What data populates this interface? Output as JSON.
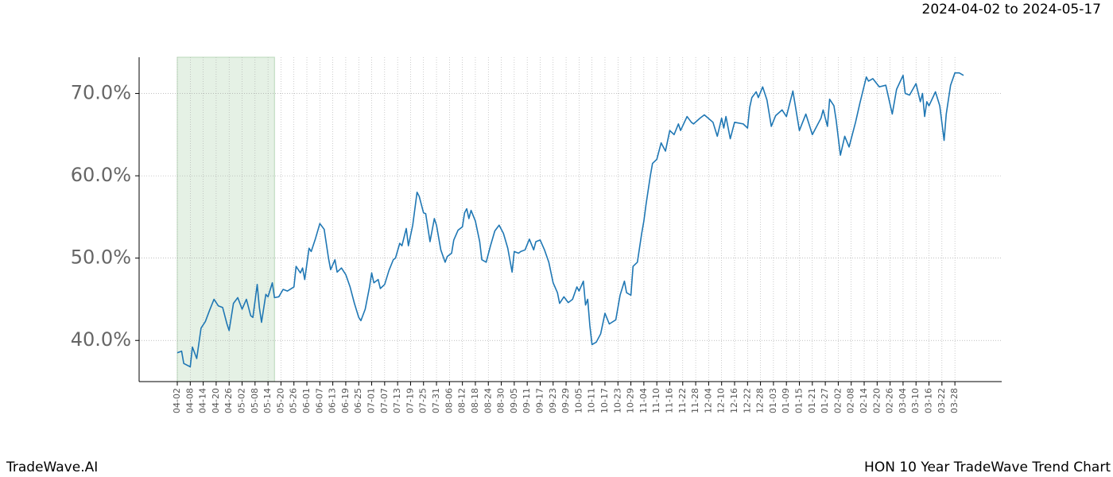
{
  "chart_data": {
    "type": "line",
    "title": "HON 10 Year TradeWave Trend Chart",
    "subtitle": "2024-04-02 to 2024-05-17",
    "brand": "TradeWave.AI",
    "shaded_range": [
      "04-02",
      "05-17"
    ],
    "shade_color": "#e5f1e5",
    "grid": true,
    "ylim": [
      35,
      74.4
    ],
    "yticks": [
      {
        "value": 40,
        "label": "40.0%"
      },
      {
        "value": 50,
        "label": "50.0%"
      },
      {
        "value": 60,
        "label": "60.0%"
      },
      {
        "value": 70,
        "label": "70.0%"
      }
    ],
    "xticks": [
      "04-02",
      "04-08",
      "04-14",
      "04-20",
      "04-26",
      "05-02",
      "05-08",
      "05-14",
      "05-20",
      "05-26",
      "06-01",
      "06-07",
      "06-13",
      "06-19",
      "06-25",
      "07-01",
      "07-07",
      "07-13",
      "07-19",
      "07-25",
      "07-31",
      "08-06",
      "08-12",
      "08-18",
      "08-24",
      "08-30",
      "09-05",
      "09-11",
      "09-17",
      "09-23",
      "09-29",
      "10-05",
      "10-11",
      "10-17",
      "10-23",
      "10-29",
      "11-04",
      "11-10",
      "11-16",
      "11-22",
      "11-28",
      "12-04",
      "12-10",
      "12-16",
      "12-22",
      "12-28",
      "01-03",
      "01-09",
      "01-15",
      "01-21",
      "01-27",
      "02-02",
      "02-08",
      "02-14",
      "02-20",
      "02-26",
      "03-04",
      "03-10",
      "03-16",
      "03-22",
      "03-28"
    ],
    "x": [
      "04-02",
      "04-04",
      "04-05",
      "04-08",
      "04-09",
      "04-11",
      "04-13",
      "04-15",
      "04-17",
      "04-19",
      "04-21",
      "04-23",
      "04-25",
      "04-26",
      "04-28",
      "04-30",
      "05-02",
      "05-04",
      "05-06",
      "05-07",
      "05-09",
      "05-10",
      "05-11",
      "05-13",
      "05-14",
      "05-16",
      "05-17",
      "05-19",
      "05-21",
      "05-23",
      "05-26",
      "05-27",
      "05-29",
      "05-30",
      "05-31",
      "06-02",
      "06-03",
      "06-05",
      "06-07",
      "06-09",
      "06-11",
      "06-12",
      "06-14",
      "06-15",
      "06-17",
      "06-19",
      "06-21",
      "06-23",
      "06-25",
      "06-26",
      "06-28",
      "06-30",
      "07-01",
      "07-02",
      "07-04",
      "07-05",
      "07-07",
      "07-09",
      "07-11",
      "07-12",
      "07-14",
      "07-15",
      "07-17",
      "07-18",
      "07-20",
      "07-22",
      "07-23",
      "07-25",
      "07-26",
      "07-28",
      "07-30",
      "07-31",
      "08-02",
      "08-04",
      "08-05",
      "08-07",
      "08-08",
      "08-10",
      "08-12",
      "08-13",
      "08-14",
      "08-15",
      "08-16",
      "08-18",
      "08-20",
      "08-21",
      "08-23",
      "08-25",
      "08-27",
      "08-29",
      "08-31",
      "09-02",
      "09-04",
      "09-05",
      "09-07",
      "09-08",
      "09-10",
      "09-12",
      "09-14",
      "09-15",
      "09-17",
      "09-19",
      "09-21",
      "09-23",
      "09-25",
      "09-26",
      "09-28",
      "09-30",
      "10-02",
      "10-04",
      "10-05",
      "10-07",
      "10-08",
      "10-09",
      "10-10",
      "10-11",
      "10-13",
      "10-15",
      "10-17",
      "10-19",
      "10-22",
      "10-24",
      "10-26",
      "10-27",
      "10-29",
      "10-30",
      "11-01",
      "11-03",
      "11-04",
      "11-05",
      "11-07",
      "11-08",
      "11-10",
      "11-12",
      "11-14",
      "11-16",
      "11-18",
      "11-20",
      "11-21",
      "11-24",
      "11-26",
      "11-27",
      "11-30",
      "12-02",
      "12-06",
      "12-08",
      "12-10",
      "12-11",
      "12-12",
      "12-14",
      "12-16",
      "12-20",
      "12-22",
      "12-23",
      "12-24",
      "12-26",
      "12-27",
      "12-29",
      "12-31",
      "01-02",
      "01-04",
      "01-07",
      "01-09",
      "01-12",
      "01-15",
      "01-18",
      "01-21",
      "01-25",
      "01-26",
      "01-28",
      "01-29",
      "01-31",
      "02-01",
      "02-03",
      "02-05",
      "02-07",
      "02-10",
      "02-12",
      "02-15",
      "02-16",
      "02-18",
      "02-21",
      "02-24",
      "02-27",
      "03-01",
      "03-04",
      "03-05",
      "03-07",
      "03-10",
      "03-12",
      "03-13",
      "03-14",
      "03-15",
      "03-16",
      "03-19",
      "03-21",
      "03-23",
      "03-24",
      "03-26",
      "03-28",
      "03-30",
      "04-01"
    ],
    "series": [
      {
        "color": "#1f77b4",
        "values": [
          38.5,
          38.7,
          37.2,
          36.8,
          39.2,
          37.8,
          41.5,
          42.3,
          43.7,
          45.0,
          44.2,
          44.0,
          42.0,
          41.2,
          44.5,
          45.2,
          43.8,
          45.0,
          43.0,
          42.8,
          46.8,
          44.0,
          42.2,
          45.6,
          45.3,
          47.0,
          45.2,
          45.3,
          46.2,
          46.0,
          46.5,
          49.0,
          48.2,
          48.8,
          47.4,
          51.2,
          50.8,
          52.4,
          54.2,
          53.5,
          50.0,
          48.6,
          49.8,
          48.3,
          48.8,
          48.0,
          46.5,
          44.5,
          42.8,
          42.4,
          43.8,
          46.5,
          48.2,
          47.0,
          47.4,
          46.3,
          46.8,
          48.5,
          49.8,
          50.0,
          51.8,
          51.5,
          53.6,
          51.5,
          54.0,
          58.0,
          57.5,
          55.5,
          55.4,
          52.0,
          54.8,
          54.0,
          51.0,
          49.5,
          50.2,
          50.6,
          52.2,
          53.4,
          53.8,
          55.5,
          56.0,
          54.8,
          55.8,
          54.5,
          52.0,
          49.8,
          49.5,
          51.5,
          53.3,
          54.0,
          53.0,
          51.2,
          48.3,
          50.8,
          50.6,
          50.8,
          51.0,
          52.3,
          51.0,
          52.0,
          52.2,
          51.0,
          49.5,
          47.0,
          45.8,
          44.5,
          45.3,
          44.6,
          45.0,
          46.5,
          46.0,
          47.2,
          44.3,
          45.0,
          41.8,
          39.5,
          39.8,
          40.8,
          43.3,
          42.0,
          42.5,
          45.5,
          47.2,
          45.8,
          45.5,
          49.0,
          49.5,
          53.0,
          54.5,
          56.5,
          60.0,
          61.5,
          62.0,
          64.0,
          63.0,
          65.5,
          65.0,
          66.3,
          65.5,
          67.2,
          66.5,
          66.3,
          67.0,
          67.4,
          66.5,
          64.8,
          67.0,
          65.8,
          67.2,
          64.5,
          66.5,
          66.3,
          65.8,
          68.3,
          69.5,
          70.2,
          69.5,
          70.8,
          69.2,
          66.0,
          67.3,
          68.0,
          67.2,
          70.3,
          65.5,
          67.5,
          65.0,
          67.0,
          68.0,
          66.0,
          69.3,
          68.5,
          66.8,
          62.5,
          64.8,
          63.5,
          66.5,
          68.8,
          72.0,
          71.5,
          71.8,
          70.8,
          71.0,
          67.5,
          70.5,
          72.2,
          70.0,
          69.8,
          71.2,
          69.0,
          70.0,
          67.2,
          69.0,
          68.5,
          70.2,
          68.5,
          64.3,
          67.5,
          71.0,
          72.5,
          72.5,
          72.2
        ]
      }
    ]
  }
}
